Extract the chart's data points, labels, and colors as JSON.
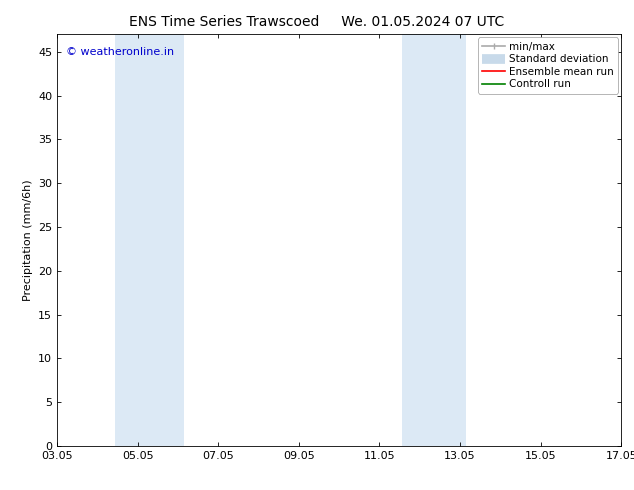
{
  "title_left": "ENS Time Series Trawscoed",
  "title_right": "We. 01.05.2024 07 UTC",
  "ylabel": "Precipitation (mm/6h)",
  "xlim_num": [
    0,
    14
  ],
  "xtick_positions": [
    0,
    2,
    4,
    6,
    8,
    10,
    12,
    14
  ],
  "xtick_labels": [
    "03.05",
    "05.05",
    "07.05",
    "09.05",
    "11.05",
    "13.05",
    "15.05",
    "17.05"
  ],
  "ylim": [
    0,
    47
  ],
  "ytick_positions": [
    0,
    5,
    10,
    15,
    20,
    25,
    30,
    35,
    40,
    45
  ],
  "ytick_labels": [
    "0",
    "5",
    "10",
    "15",
    "20",
    "25",
    "30",
    "35",
    "40",
    "45"
  ],
  "shaded_bands": [
    {
      "x_start": 1.43,
      "x_end": 3.14,
      "color": "#dce9f5"
    },
    {
      "x_start": 8.57,
      "x_end": 10.14,
      "color": "#dce9f5"
    }
  ],
  "background_color": "#ffffff",
  "legend_entries": [
    {
      "label": "min/max",
      "color": "#aaaaaa",
      "lw": 1.2,
      "type": "line_with_caps"
    },
    {
      "label": "Standard deviation",
      "color": "#c8daea",
      "lw": 7,
      "type": "thick_line"
    },
    {
      "label": "Ensemble mean run",
      "color": "#ff0000",
      "lw": 1.2,
      "type": "line"
    },
    {
      "label": "Controll run",
      "color": "#008000",
      "lw": 1.2,
      "type": "line"
    }
  ],
  "watermark_text": "© weatheronline.in",
  "watermark_color": "#0000cc",
  "watermark_fontsize": 8,
  "title_fontsize": 10,
  "axis_label_fontsize": 8,
  "tick_fontsize": 8,
  "legend_fontsize": 7.5
}
